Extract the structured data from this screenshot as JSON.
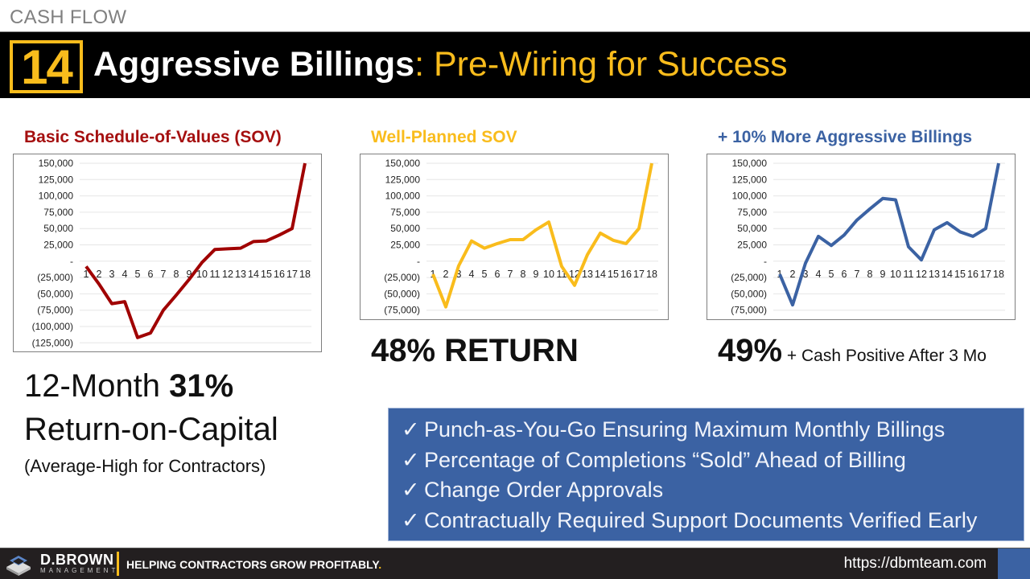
{
  "header": {
    "section_label": "CASH FLOW",
    "number": "14",
    "title_strong": "Aggressive Billings",
    "title_accent": ": Pre-Wiring for Success"
  },
  "charts": [
    {
      "title": "Basic Schedule-of-Values (SOV)",
      "title_color": "#A50F0F",
      "line_color": "#A00000"
    },
    {
      "title": "Well-Planned SOV",
      "title_color": "#F9BC1C",
      "line_color": "#F9BC1C"
    },
    {
      "title": "+ 10% More Aggressive Billings",
      "title_color": "#3B62A3",
      "line_color": "#3B62A3"
    }
  ],
  "results": {
    "chart2_return": "48% RETURN",
    "chart3_return": "49%",
    "chart3_note": " + Cash Positive After 3 Mo",
    "left_line1_prefix": "12-Month ",
    "left_line1_bold": "31%",
    "left_line2": "Return-on-Capital",
    "left_line3": "(Average-High for Contractors)"
  },
  "bullets": {
    "check_icon": "✓",
    "items": [
      "Punch-as-You-Go Ensuring Maximum Monthly Billings",
      "Percentage of Completions “Sold” Ahead of Billing",
      "Change Order Approvals",
      "Contractually Required Support Documents Verified Early"
    ]
  },
  "footer": {
    "logo_name": "D.BROWN",
    "logo_sub": "MANAGEMENT",
    "tagline": "HELPING CONTRACTORS GROW PROFITABLY",
    "tagline_dot": ".",
    "url": "https://dbmteam.com"
  },
  "colors": {
    "accent_yellow": "#F9BC1C",
    "brand_blue": "#3B62A3",
    "dark_red": "#A00000",
    "title_bar": "#000000",
    "footer_bg": "#231F20"
  },
  "chart_data": [
    {
      "type": "line",
      "title": "Basic Schedule-of-Values (SOV)",
      "xlabel": "",
      "ylabel": "",
      "categories": [
        "1",
        "2",
        "3",
        "4",
        "5",
        "6",
        "7",
        "8",
        "9",
        "10",
        "11",
        "12",
        "13",
        "14",
        "15",
        "16",
        "17",
        "18"
      ],
      "values": [
        -8000,
        -35000,
        -65000,
        -62000,
        -117000,
        -110000,
        -75000,
        -52000,
        -28000,
        -2000,
        18000,
        19000,
        20000,
        30000,
        31000,
        40000,
        50000,
        150000
      ],
      "ylim": [
        -125000,
        150000
      ],
      "yticks": [
        150000,
        125000,
        100000,
        75000,
        50000,
        25000,
        0,
        -25000,
        -50000,
        -75000,
        -100000,
        -125000
      ],
      "ytick_labels": [
        "150,000",
        "125,000",
        "100,000",
        "75,000",
        "50,000",
        "25,000",
        "-",
        "(25,000)",
        "(50,000)",
        "(75,000)",
        "(100,000)",
        "(125,000)"
      ],
      "grid": true,
      "legend": "none"
    },
    {
      "type": "line",
      "title": "Well-Planned SOV",
      "xlabel": "",
      "ylabel": "",
      "categories": [
        "1",
        "2",
        "3",
        "4",
        "5",
        "6",
        "7",
        "8",
        "9",
        "10",
        "11",
        "12",
        "13",
        "14",
        "15",
        "16",
        "17",
        "18"
      ],
      "values": [
        -20000,
        -70000,
        -7000,
        31000,
        20000,
        27000,
        33000,
        33000,
        48000,
        60000,
        -8000,
        -37000,
        10000,
        43000,
        32000,
        27000,
        50000,
        150000
      ],
      "ylim": [
        -75000,
        150000
      ],
      "yticks": [
        150000,
        125000,
        100000,
        75000,
        50000,
        25000,
        0,
        -25000,
        -50000,
        -75000
      ],
      "ytick_labels": [
        "150,000",
        "125,000",
        "100,000",
        "75,000",
        "50,000",
        "25,000",
        "-",
        "(25,000)",
        "(50,000)",
        "(75,000)"
      ],
      "grid": true,
      "legend": "none"
    },
    {
      "type": "line",
      "title": "+ 10% More Aggressive Billings",
      "xlabel": "",
      "ylabel": "",
      "categories": [
        "1",
        "2",
        "3",
        "4",
        "5",
        "6",
        "7",
        "8",
        "9",
        "10",
        "11",
        "12",
        "13",
        "14",
        "15",
        "16",
        "17",
        "18"
      ],
      "values": [
        -20000,
        -67000,
        -3000,
        38000,
        24000,
        40000,
        63000,
        80000,
        96000,
        94000,
        22000,
        2000,
        48000,
        59000,
        45000,
        38000,
        50000,
        150000
      ],
      "ylim": [
        -75000,
        150000
      ],
      "yticks": [
        150000,
        125000,
        100000,
        75000,
        50000,
        25000,
        0,
        -25000,
        -50000,
        -75000
      ],
      "ytick_labels": [
        "150,000",
        "125,000",
        "100,000",
        "75,000",
        "50,000",
        "25,000",
        "-",
        "(25,000)",
        "(50,000)",
        "(75,000)"
      ],
      "grid": true,
      "legend": "none"
    }
  ]
}
